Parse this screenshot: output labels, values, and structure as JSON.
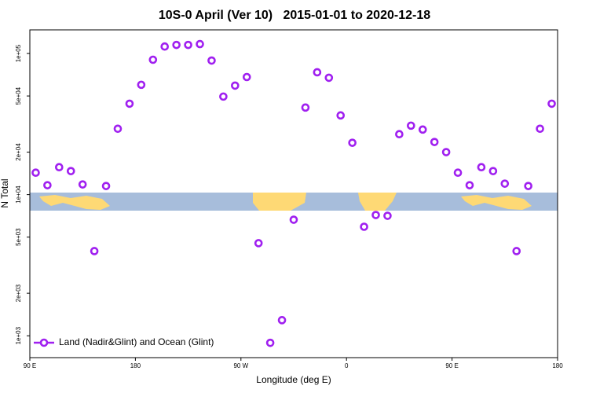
{
  "chart_data": {
    "type": "scatter",
    "title": "10S-0 April (Ver 10)   2015-01-01 to 2020-12-18",
    "x_label": "Longitude (deg E)",
    "y_label": "N Total",
    "log_y": true,
    "legend": "lower left",
    "xlim": [
      90,
      540
    ],
    "xticks": [
      {
        "value": 90,
        "label": "90 E"
      },
      180,
      {
        "value": 270,
        "label": "90 W"
      },
      {
        "value": 360,
        "label": "0"
      },
      {
        "value": 450,
        "label": "90 E"
      },
      {
        "value": 540,
        "label": "180"
      }
    ],
    "ylim": [
      700,
      147000
    ],
    "yticks": [
      {
        "value": 1000,
        "label": "1e+03"
      },
      {
        "value": 2000,
        "label": "2e+03"
      },
      {
        "value": 5000,
        "label": "5e+03"
      },
      {
        "value": 10000,
        "label": "1e+04"
      },
      {
        "value": 20000,
        "label": "2e+04"
      },
      {
        "value": 50000,
        "label": "5e+04"
      },
      {
        "value": 100000,
        "label": "1e+05"
      }
    ],
    "x": [
      95,
      105,
      115,
      125,
      135,
      145,
      155,
      165,
      175,
      185,
      195,
      205,
      215,
      225,
      235,
      245,
      255,
      265,
      275,
      285,
      295,
      305,
      315,
      325,
      335,
      345,
      355,
      365,
      375,
      385,
      395,
      405,
      415,
      425,
      435,
      445,
      455,
      465,
      475,
      485,
      495,
      505,
      515,
      525,
      535
    ],
    "series": [
      {
        "name": "Land (Nadir&Glint) and Ocean (Glint)",
        "color": "#a020f0",
        "values": [
          14300,
          11660,
          15640,
          14680,
          11810,
          3980,
          11510,
          29300,
          44100,
          60000,
          90300,
          112000,
          115000,
          115000,
          116600,
          89100,
          49500,
          59200,
          68100,
          4530,
          891,
          1290,
          6640,
          41400,
          73600,
          67300,
          36400,
          23300,
          5920,
          7170,
          7080,
          26800,
          30800,
          28900,
          23600,
          20000,
          14300,
          11660,
          15640,
          14680,
          11960,
          3980,
          11510,
          29300,
          44100
        ]
      }
    ]
  }
}
